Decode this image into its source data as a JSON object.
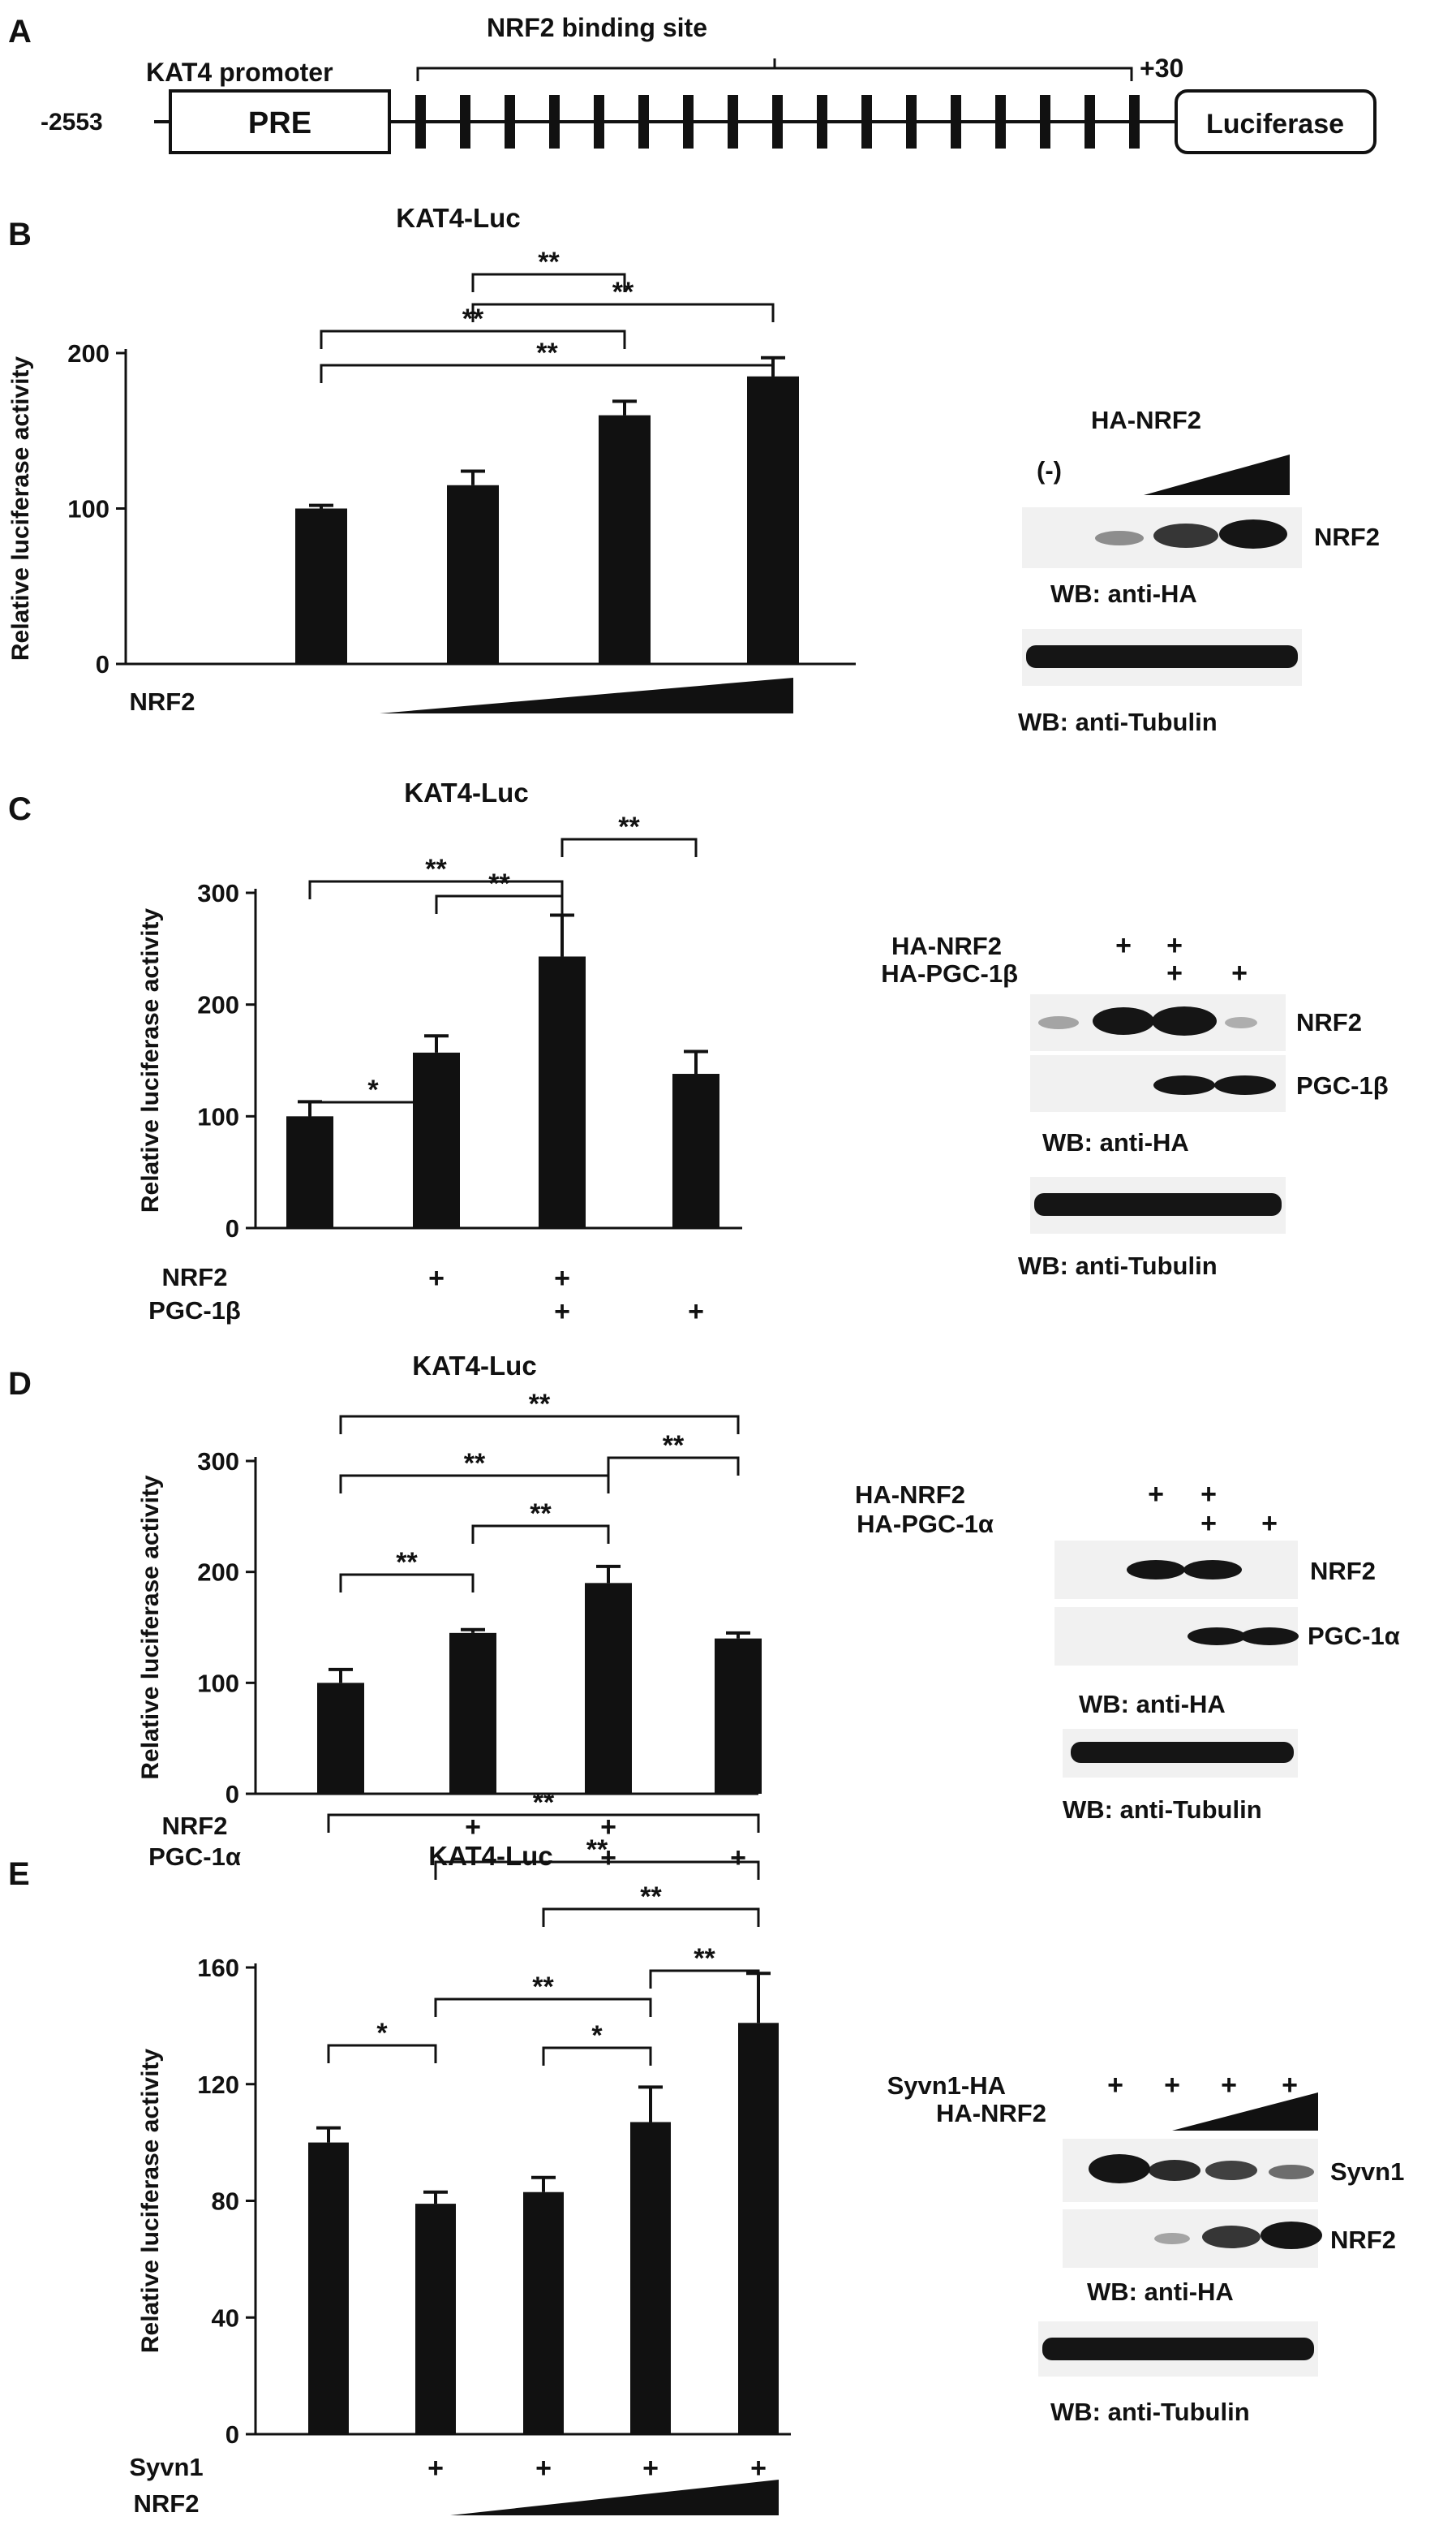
{
  "colors": {
    "ink": "#111111",
    "bar": "#111111",
    "blot_band": "#151515",
    "blot_bg": "#f1f1f1"
  },
  "panelA": {
    "letter": "A",
    "promoter_label": "KAT4 promoter",
    "binding_label": "NRF2 binding site",
    "start_label": "-2553",
    "end_label": "+30",
    "pre_label": "PRE",
    "luc_label": "Luciferase"
  },
  "panelB": {
    "letter": "B",
    "blot": {
      "title": "HA-NRF2",
      "neg_label": "(-)",
      "band1_label": "NRF2",
      "wb1_label": "WB: anti-HA",
      "wb2_label": "WB: anti-Tubulin"
    }
  },
  "panelC": {
    "letter": "C",
    "blot": {
      "row1_label": "HA-NRF2",
      "row2_label": "HA-PGC-1β",
      "plus": "+",
      "band1_label": "NRF2",
      "band2_label": "PGC-1β",
      "wb1_label": "WB: anti-HA",
      "wb2_label": "WB: anti-Tubulin"
    }
  },
  "panelD": {
    "letter": "D",
    "blot": {
      "row1_label": "HA-NRF2",
      "row2_label": "HA-PGC-1α",
      "plus": "+",
      "band1_label": "NRF2",
      "band2_label": "PGC-1α",
      "wb1_label": "WB: anti-HA",
      "wb2_label": "WB: anti-Tubulin"
    }
  },
  "panelE": {
    "letter": "E",
    "blot": {
      "row1_label": "Syvn1-HA",
      "row2_label": "HA-NRF2",
      "plus": "+",
      "band1_label": "Syvn1",
      "band2_label": "NRF2",
      "wb1_label": "WB: anti-HA",
      "wb2_label": "WB: anti-Tubulin"
    }
  },
  "chart_data": [
    {
      "panel": "B",
      "type": "bar",
      "title": "KAT4-Luc",
      "ylabel": "Relative luciferase activity",
      "ylim": [
        0,
        200
      ],
      "yticks": [
        0,
        100,
        200
      ],
      "values": [
        100,
        115,
        160,
        185
      ],
      "errors": [
        2,
        9,
        9,
        12
      ],
      "conditions": [
        {
          "name": "NRF2",
          "marks": [
            "",
            "ramp",
            "ramp",
            "ramp"
          ]
        }
      ],
      "significance": [
        {
          "from": 0,
          "to": 2,
          "label": "**"
        },
        {
          "from": 1,
          "to": 2,
          "label": "**"
        },
        {
          "from": 0,
          "to": 3,
          "label": "**"
        },
        {
          "from": 1,
          "to": 3,
          "label": "**"
        }
      ]
    },
    {
      "panel": "C",
      "type": "bar",
      "title": "KAT4-Luc",
      "ylabel": "Relative luciferase activity",
      "ylim": [
        0,
        300
      ],
      "yticks": [
        0,
        100,
        200,
        300
      ],
      "values": [
        100,
        157,
        243,
        138
      ],
      "errors": [
        13,
        15,
        37,
        20
      ],
      "conditions": [
        {
          "name": "NRF2",
          "marks": [
            "",
            "+",
            "+",
            ""
          ]
        },
        {
          "name": "PGC-1β",
          "marks": [
            "",
            "",
            "+",
            "+"
          ]
        }
      ],
      "significance": [
        {
          "from": 0,
          "to": 1,
          "label": "*"
        },
        {
          "from": 1,
          "to": 2,
          "label": "**"
        },
        {
          "from": 0,
          "to": 2,
          "label": "**"
        },
        {
          "from": 2,
          "to": 3,
          "label": "**"
        }
      ]
    },
    {
      "panel": "D",
      "type": "bar",
      "title": "KAT4-Luc",
      "ylabel": "Relative luciferase activity",
      "ylim": [
        0,
        300
      ],
      "yticks": [
        0,
        100,
        200,
        300
      ],
      "values": [
        100,
        145,
        190,
        140
      ],
      "errors": [
        12,
        3,
        15,
        5
      ],
      "conditions": [
        {
          "name": "NRF2",
          "marks": [
            "",
            "+",
            "+",
            ""
          ]
        },
        {
          "name": "PGC-1α",
          "marks": [
            "",
            "",
            "+",
            "+"
          ]
        }
      ],
      "significance": [
        {
          "from": 0,
          "to": 1,
          "label": "**"
        },
        {
          "from": 1,
          "to": 2,
          "label": "**"
        },
        {
          "from": 0,
          "to": 2,
          "label": "**"
        },
        {
          "from": 2,
          "to": 3,
          "label": "**"
        },
        {
          "from": 0,
          "to": 3,
          "label": "**"
        }
      ]
    },
    {
      "panel": "E",
      "type": "bar",
      "title": "KAT4-Luc",
      "ylabel": "Relative luciferase activity",
      "ylim": [
        0,
        160
      ],
      "yticks": [
        0,
        40,
        80,
        120,
        160
      ],
      "values": [
        100,
        79,
        83,
        107,
        141
      ],
      "errors": [
        5,
        4,
        5,
        12,
        17
      ],
      "conditions": [
        {
          "name": "Syvn1",
          "marks": [
            "",
            "+",
            "+",
            "+",
            "+"
          ]
        },
        {
          "name": "NRF2",
          "marks": [
            "",
            "",
            "ramp",
            "ramp",
            "ramp"
          ]
        }
      ],
      "significance": [
        {
          "from": 0,
          "to": 1,
          "label": "*"
        },
        {
          "from": 2,
          "to": 3,
          "label": "*"
        },
        {
          "from": 1,
          "to": 3,
          "label": "**"
        },
        {
          "from": 3,
          "to": 4,
          "label": "**"
        },
        {
          "from": 2,
          "to": 4,
          "label": "**"
        },
        {
          "from": 1,
          "to": 4,
          "label": "**"
        },
        {
          "from": 0,
          "to": 4,
          "label": "**"
        }
      ]
    }
  ]
}
